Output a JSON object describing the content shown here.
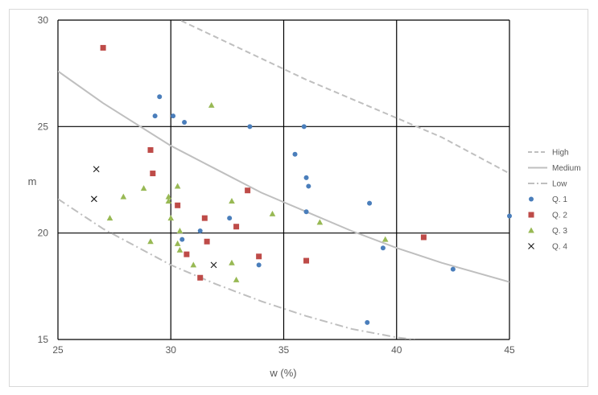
{
  "chart_data": {
    "type": "scatter",
    "xlabel": "w (%)",
    "ylabel": "m",
    "xlim": [
      25,
      45
    ],
    "ylim": [
      15,
      30
    ],
    "x_ticks": [
      25,
      30,
      35,
      40,
      45
    ],
    "y_ticks": [
      15,
      20,
      25,
      30
    ],
    "grid": true,
    "legend_position": "right",
    "lines": [
      {
        "name": "High",
        "style": "dashed",
        "color": "#bfbfbf",
        "x": [
          26.3,
          28,
          30,
          32,
          34,
          36,
          38,
          40,
          42,
          45
        ],
        "y": [
          32.3,
          31.3,
          30.2,
          29.2,
          28.2,
          27.2,
          26.3,
          25.4,
          24.5,
          22.8
        ]
      },
      {
        "name": "Medium",
        "style": "solid",
        "color": "#bfbfbf",
        "x": [
          25,
          27,
          30,
          32,
          34,
          36,
          38,
          40,
          42,
          45
        ],
        "y": [
          27.6,
          26.1,
          24.1,
          23.0,
          21.9,
          21.0,
          20.1,
          19.3,
          18.6,
          17.7
        ]
      },
      {
        "name": "Low",
        "style": "dashdot",
        "color": "#bfbfbf",
        "x": [
          25,
          27,
          30,
          32,
          34,
          36,
          38,
          40,
          40.8
        ],
        "y": [
          21.6,
          20.2,
          18.5,
          17.6,
          16.8,
          16.1,
          15.5,
          15.1,
          15.0
        ]
      }
    ],
    "series": [
      {
        "name": "Q. 1",
        "marker": "circle",
        "color": "#4a7ebb",
        "points": [
          [
            29.3,
            25.5
          ],
          [
            29.5,
            26.4
          ],
          [
            30.1,
            25.5
          ],
          [
            30.6,
            25.2
          ],
          [
            33.5,
            25.0
          ],
          [
            35.9,
            25.0
          ],
          [
            35.5,
            23.7
          ],
          [
            36.0,
            22.6
          ],
          [
            36.1,
            22.2
          ],
          [
            36.0,
            21.0
          ],
          [
            38.8,
            21.4
          ],
          [
            45.0,
            20.8
          ],
          [
            32.6,
            20.7
          ],
          [
            31.3,
            20.1
          ],
          [
            30.5,
            19.7
          ],
          [
            33.9,
            18.5
          ],
          [
            39.4,
            19.3
          ],
          [
            42.5,
            18.3
          ],
          [
            38.7,
            15.8
          ]
        ]
      },
      {
        "name": "Q. 2",
        "marker": "square",
        "color": "#be4b48",
        "points": [
          [
            27.0,
            28.7
          ],
          [
            29.1,
            23.9
          ],
          [
            29.2,
            22.8
          ],
          [
            30.3,
            21.3
          ],
          [
            31.5,
            20.7
          ],
          [
            31.6,
            19.6
          ],
          [
            32.9,
            20.3
          ],
          [
            33.4,
            22.0
          ],
          [
            30.7,
            19.0
          ],
          [
            31.3,
            17.9
          ],
          [
            33.9,
            18.9
          ],
          [
            36.0,
            18.7
          ],
          [
            41.2,
            19.8
          ]
        ]
      },
      {
        "name": "Q. 3",
        "marker": "triangle",
        "color": "#98b954",
        "points": [
          [
            27.3,
            20.7
          ],
          [
            27.9,
            21.7
          ],
          [
            28.8,
            22.1
          ],
          [
            29.1,
            19.6
          ],
          [
            29.9,
            21.7
          ],
          [
            29.9,
            21.5
          ],
          [
            30.0,
            20.7
          ],
          [
            30.3,
            22.2
          ],
          [
            30.3,
            19.5
          ],
          [
            30.4,
            19.2
          ],
          [
            30.4,
            20.1
          ],
          [
            31.0,
            18.5
          ],
          [
            31.8,
            26.0
          ],
          [
            32.7,
            21.5
          ],
          [
            32.7,
            18.6
          ],
          [
            32.9,
            17.8
          ],
          [
            34.5,
            20.9
          ],
          [
            36.6,
            20.5
          ],
          [
            39.5,
            19.7
          ]
        ]
      },
      {
        "name": "Q. 4",
        "marker": "x",
        "color": "#1a1a1a",
        "points": [
          [
            26.7,
            23.0
          ],
          [
            26.6,
            21.6
          ],
          [
            31.9,
            18.5
          ]
        ]
      }
    ]
  }
}
